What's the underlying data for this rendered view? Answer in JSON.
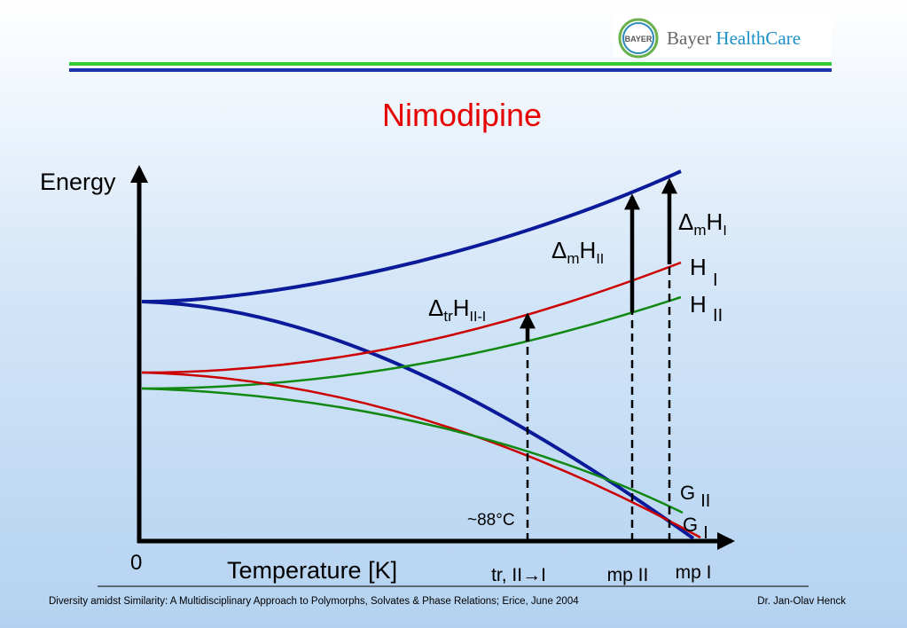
{
  "logo": {
    "emblem": "BAYER",
    "brand": "Bayer",
    "division": "HealthCare"
  },
  "title": "Nimodipine",
  "axes": {
    "y_label": "Energy",
    "origin": "0",
    "x_label": "Temperature [K]"
  },
  "arrows": [
    {
      "delta": "Δ",
      "sub": "tr",
      "main": "H",
      "index": "II-I"
    },
    {
      "delta": "Δ",
      "sub": "m",
      "main": "H",
      "index": "II"
    },
    {
      "delta": "Δ",
      "sub": "m",
      "main": "H",
      "index": "I"
    }
  ],
  "curves": [
    {
      "main": "H",
      "index": "I"
    },
    {
      "main": "H",
      "index": "II"
    },
    {
      "main": "G",
      "index": "II"
    },
    {
      "main": "G",
      "index": "I"
    }
  ],
  "annotation": "~88°C",
  "x_marks": [
    "tr, II→I",
    "mp II",
    "mp I"
  ],
  "footer": {
    "left": "Diversity amidst Similarity: A Multidisciplinary Approach to Polymorphs, Solvates & Phase Relations; Erice, June 2004",
    "right": "Dr. Jan-Olav Henck"
  }
}
